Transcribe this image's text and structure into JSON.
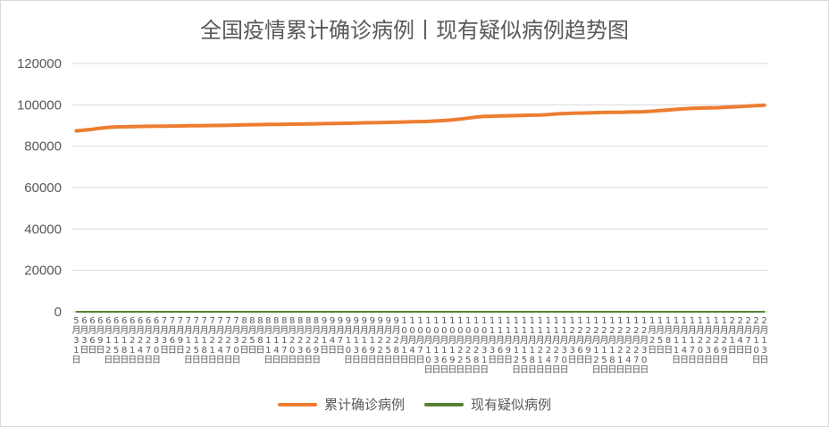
{
  "chart_data": {
    "type": "line",
    "title": "全国疫情累计确诊病例丨现有疑似病例趋势图",
    "xlabel": "",
    "ylabel": "",
    "ylim": [
      0,
      120000
    ],
    "yticks": [
      "0",
      "20000",
      "40000",
      "60000",
      "80000",
      "100000",
      "120000"
    ],
    "grid": true,
    "legend_position": "bottom",
    "x": [
      "5月31日",
      "6月3日",
      "6月6日",
      "6月9日",
      "6月12日",
      "6月15日",
      "6月18日",
      "6月21日",
      "6月24日",
      "6月27日",
      "6月30日",
      "7月3日",
      "7月6日",
      "7月9日",
      "7月12日",
      "7月15日",
      "7月18日",
      "7月21日",
      "7月24日",
      "7月27日",
      "7月30日",
      "8月2日",
      "8月5日",
      "8月8日",
      "8月11日",
      "8月14日",
      "8月17日",
      "8月20日",
      "8月23日",
      "8月26日",
      "8月29日",
      "9月1日",
      "9月4日",
      "9月7日",
      "9月10日",
      "9月13日",
      "9月16日",
      "9月19日",
      "9月22日",
      "9月25日",
      "9月28日",
      "10月1日",
      "10月4日",
      "10月7日",
      "10月10日",
      "10月13日",
      "10月16日",
      "10月19日",
      "10月22日",
      "10月25日",
      "10月28日",
      "10月31日",
      "11月3日",
      "11月6日",
      "11月9日",
      "11月12日",
      "11月15日",
      "11月18日",
      "11月21日",
      "11月24日",
      "11月27日",
      "11月30日",
      "12月3日",
      "12月6日",
      "12月9日",
      "12月12日",
      "12月15日",
      "12月18日",
      "12月21日",
      "12月24日",
      "12月27日",
      "12月30日",
      "1月2日",
      "1月5日",
      "1月8日",
      "1月11日",
      "1月14日",
      "1月17日",
      "1月20日",
      "1月23日",
      "1月26日",
      "1月29日",
      "2月1日",
      "2月4日",
      "2月7日",
      "2月10日",
      "2月13日"
    ],
    "series": [
      {
        "name": "累计确诊病例",
        "color": "#ed7d31",
        "values": [
          87400,
          87800,
          88200,
          88700,
          89100,
          89300,
          89400,
          89500,
          89550,
          89600,
          89650,
          89700,
          89750,
          89800,
          89850,
          89900,
          89950,
          90000,
          90050,
          90100,
          90200,
          90300,
          90400,
          90450,
          90500,
          90550,
          90600,
          90650,
          90700,
          90750,
          90800,
          90900,
          91000,
          91050,
          91100,
          91200,
          91300,
          91350,
          91400,
          91500,
          91600,
          91700,
          91800,
          91900,
          92000,
          92200,
          92400,
          92700,
          93100,
          93600,
          94100,
          94400,
          94500,
          94600,
          94700,
          94800,
          94900,
          95000,
          95100,
          95300,
          95600,
          95800,
          95900,
          96000,
          96100,
          96200,
          96300,
          96350,
          96400,
          96500,
          96600,
          96700,
          96900,
          97200,
          97500,
          97800,
          98100,
          98300,
          98400,
          98500,
          98600,
          98800,
          99000,
          99200,
          99400,
          99600,
          99800
        ]
      },
      {
        "name": "现有疑似病例",
        "color": "#548235",
        "values": [
          2,
          3,
          3,
          4,
          6,
          5,
          4,
          3,
          3,
          2,
          3,
          3,
          2,
          2,
          3,
          2,
          3,
          2,
          2,
          3,
          4,
          2,
          3,
          3,
          2,
          2,
          1,
          2,
          2,
          3,
          1,
          2,
          2,
          3,
          2,
          1,
          2,
          1,
          2,
          1,
          2,
          2,
          1,
          1,
          2,
          3,
          2,
          1,
          2,
          3,
          1,
          1,
          1,
          1,
          2,
          1,
          1,
          2,
          2,
          1,
          1,
          2,
          2,
          1,
          1,
          1,
          2,
          2,
          3,
          2,
          3,
          2,
          2,
          2,
          1,
          2,
          3,
          2,
          2,
          3,
          2,
          1,
          1,
          1,
          2,
          2,
          1
        ]
      }
    ]
  }
}
